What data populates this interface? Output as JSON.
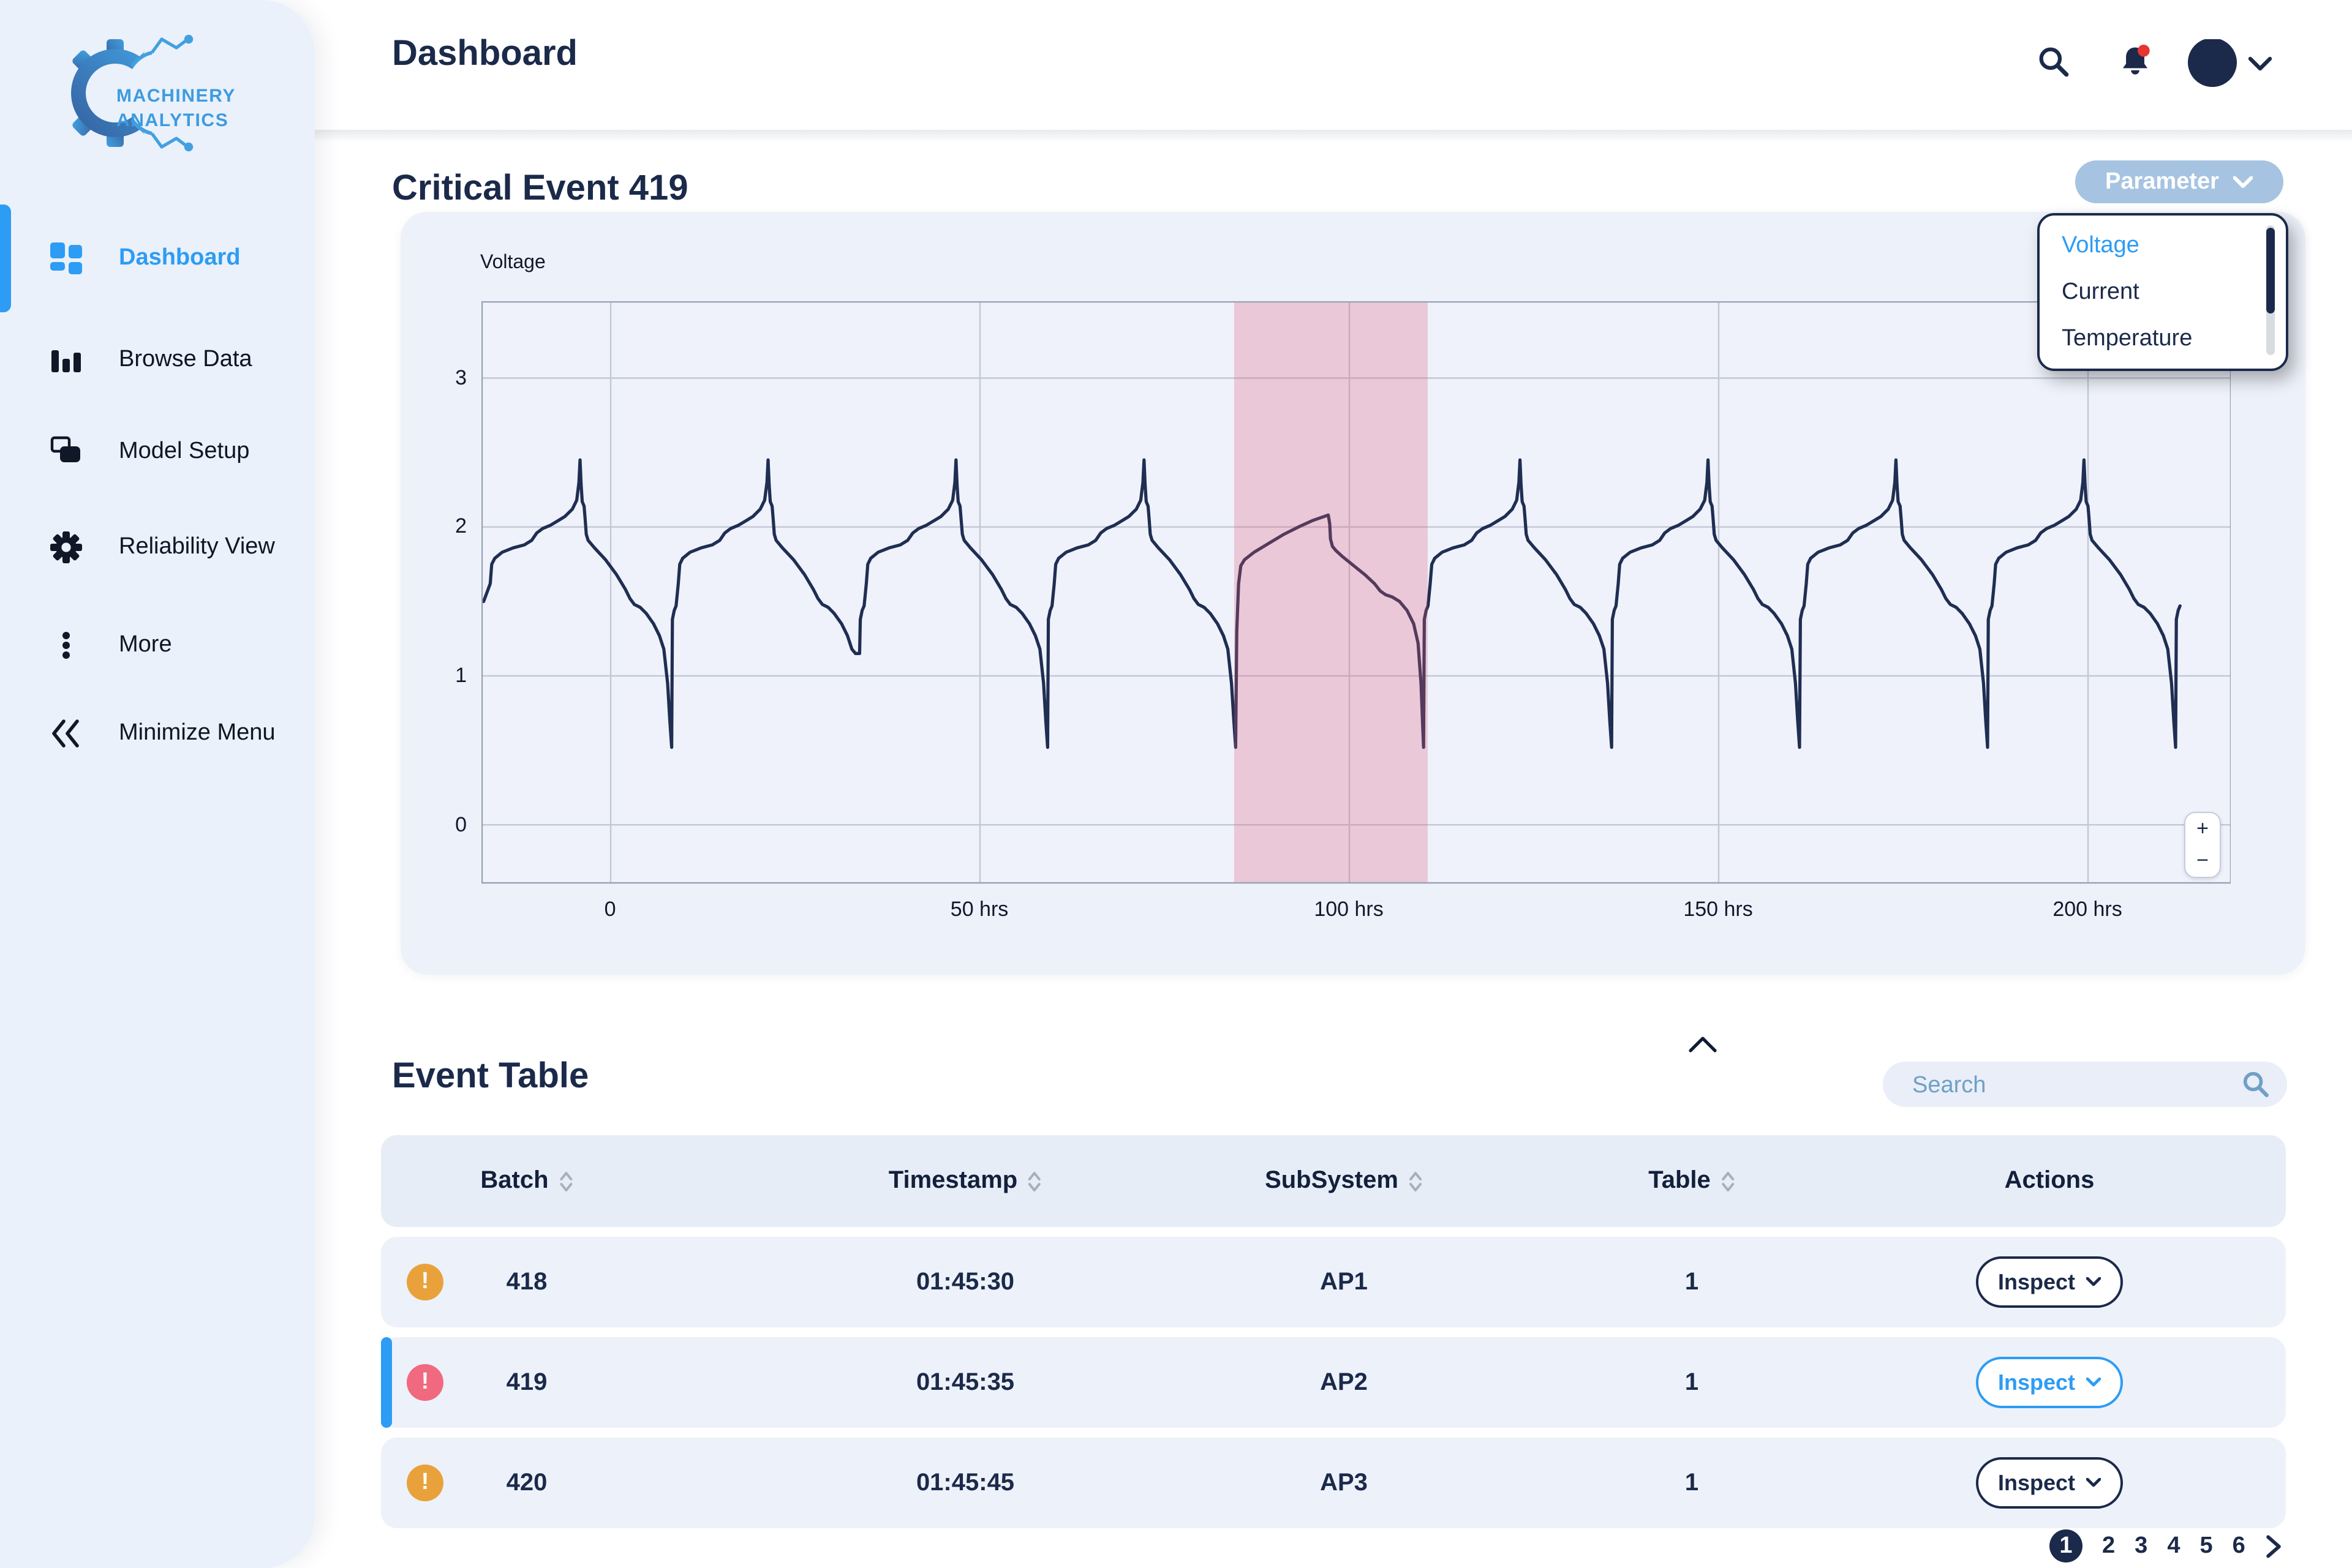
{
  "brand": {
    "line1": "MACHINERY",
    "line2": "ANALYTICS"
  },
  "header": {
    "title": "Dashboard"
  },
  "sidebar": {
    "items": [
      {
        "id": "dashboard",
        "label": "Dashboard",
        "icon": "dashboard",
        "active": true
      },
      {
        "id": "browse-data",
        "label": "Browse Data",
        "icon": "browse",
        "active": false
      },
      {
        "id": "model-setup",
        "label": "Model Setup",
        "icon": "model",
        "active": false
      },
      {
        "id": "reliability-view",
        "label": "Reliability View",
        "icon": "gear",
        "active": false
      },
      {
        "id": "more",
        "label": "More",
        "icon": "more",
        "active": false
      },
      {
        "id": "minimize-menu",
        "label": "Minimize Menu",
        "icon": "minimize",
        "active": false
      }
    ]
  },
  "chart_section": {
    "title": "Critical Event 419",
    "parameter_button": "Parameter",
    "dropdown_options": [
      {
        "label": "Voltage",
        "selected": true
      },
      {
        "label": "Current",
        "selected": false
      },
      {
        "label": "Temperature",
        "selected": false
      }
    ],
    "zoom_in": "+",
    "zoom_out": "−"
  },
  "chart_data": {
    "type": "line",
    "title": "Voltage",
    "ylabel": "Voltage",
    "xlabel": "hrs",
    "grid": true,
    "x_ticks": [
      {
        "value": 0,
        "label": "0"
      },
      {
        "value": 50,
        "label": "50 hrs"
      },
      {
        "value": 100,
        "label": "100 hrs"
      },
      {
        "value": 150,
        "label": "150 hrs"
      },
      {
        "value": 200,
        "label": "200 hrs"
      }
    ],
    "y_ticks": [
      0,
      1,
      2,
      3
    ],
    "x_range": [
      -17.5,
      219.4
    ],
    "y_range": [
      -0.394,
      3.516
    ],
    "line_color": "#1F2E52",
    "highlight_region": {
      "x_start": 84.4,
      "x_end": 110.6,
      "color": "rgba(224,95,122,0.28)",
      "meaning": "critical event window"
    },
    "waveform": {
      "period_hrs": 25.45,
      "first_cycle_start_hrs": -17.2,
      "num_cycles": 10,
      "anomaly_cycle_index": 4,
      "start_v": 1.5,
      "data_end_hrs": 212.45,
      "cycle_end_trough_v": [
        0.52,
        1.15,
        0.52,
        0.52,
        0.52,
        0.52,
        0.52,
        0.52,
        0.52
      ],
      "normal_cycle_shape": [
        [
          0,
          0.52
        ],
        [
          0.1,
          1.38
        ],
        [
          0.35,
          1.44
        ],
        [
          0.6,
          1.47
        ],
        [
          0.9,
          1.62
        ],
        [
          1.1,
          1.75
        ],
        [
          1.5,
          1.79
        ],
        [
          2.5,
          1.83
        ],
        [
          4,
          1.86
        ],
        [
          5.5,
          1.88
        ],
        [
          6.5,
          1.91
        ],
        [
          7.2,
          1.96
        ],
        [
          8,
          1.99
        ],
        [
          9,
          2.01
        ],
        [
          10,
          2.04
        ],
        [
          11,
          2.07
        ],
        [
          12,
          2.12
        ],
        [
          12.6,
          2.18
        ],
        [
          12.9,
          2.3
        ],
        [
          13.05,
          2.45
        ],
        [
          13.2,
          2.28
        ],
        [
          13.35,
          2.17
        ],
        [
          13.6,
          2.14
        ],
        [
          13.75,
          2.05
        ],
        [
          13.9,
          1.95
        ],
        [
          14.15,
          1.91
        ],
        [
          15,
          1.86
        ],
        [
          16.5,
          1.78
        ],
        [
          18,
          1.68
        ],
        [
          19.2,
          1.58
        ],
        [
          19.8,
          1.52
        ],
        [
          20.4,
          1.48
        ],
        [
          21.2,
          1.46
        ],
        [
          22,
          1.42
        ],
        [
          23,
          1.35
        ],
        [
          23.8,
          1.27
        ],
        [
          24.4,
          1.18
        ],
        [
          24.9,
          0.95
        ],
        [
          25.2,
          0.7
        ],
        [
          25.45,
          0.52
        ]
      ],
      "anomaly_cycle_shape": [
        [
          0,
          0.52
        ],
        [
          0.15,
          1.3
        ],
        [
          0.4,
          1.62
        ],
        [
          0.7,
          1.74
        ],
        [
          1.2,
          1.78
        ],
        [
          2.5,
          1.83
        ],
        [
          4.5,
          1.89
        ],
        [
          6.5,
          1.95
        ],
        [
          8.5,
          2.0
        ],
        [
          10.5,
          2.045
        ],
        [
          12,
          2.07
        ],
        [
          12.55,
          2.08
        ],
        [
          12.75,
          2.02
        ],
        [
          12.85,
          1.92
        ],
        [
          13.1,
          1.87
        ],
        [
          13.6,
          1.84
        ],
        [
          14.5,
          1.8
        ],
        [
          16,
          1.74
        ],
        [
          17.5,
          1.68
        ],
        [
          18.8,
          1.62
        ],
        [
          19.6,
          1.57
        ],
        [
          20.3,
          1.545
        ],
        [
          21.2,
          1.53
        ],
        [
          22.2,
          1.5
        ],
        [
          23.2,
          1.44
        ],
        [
          24.1,
          1.35
        ],
        [
          24.7,
          1.22
        ],
        [
          25.1,
          0.95
        ],
        [
          25.3,
          0.7
        ],
        [
          25.45,
          0.52
        ]
      ]
    }
  },
  "event_table": {
    "title": "Event Table",
    "search_placeholder": "Search",
    "columns": [
      {
        "label": "Batch",
        "sortable": true
      },
      {
        "label": "Timestamp",
        "sortable": true
      },
      {
        "label": "SubSystem",
        "sortable": true
      },
      {
        "label": "Table",
        "sortable": true
      },
      {
        "label": "Actions",
        "sortable": false
      }
    ],
    "rows": [
      {
        "severity": "warning",
        "alert": "!",
        "batch": "418",
        "timestamp": "01:45:30",
        "subsystem": "AP1",
        "table": "1",
        "action": "Inspect",
        "selected": false
      },
      {
        "severity": "critical",
        "alert": "!",
        "batch": "419",
        "timestamp": "01:45:35",
        "subsystem": "AP2",
        "table": "1",
        "action": "Inspect",
        "selected": true
      },
      {
        "severity": "warning",
        "alert": "!",
        "batch": "420",
        "timestamp": "01:45:45",
        "subsystem": "AP3",
        "table": "1",
        "action": "Inspect",
        "selected": false
      }
    ],
    "pagination": {
      "pages": [
        "1",
        "2",
        "3",
        "4",
        "5",
        "6"
      ],
      "active_page": "1"
    }
  },
  "colors": {
    "accent_blue": "#2D9CF4",
    "navy": "#1B2A4A",
    "sidebar_bg": "#EAF1FB",
    "card_bg": "#EDF1FA",
    "warning": "#E9A23B",
    "critical": "#F0697E",
    "highlight_band": "#E05F7A",
    "parameter_bg": "#A6C4E1"
  }
}
